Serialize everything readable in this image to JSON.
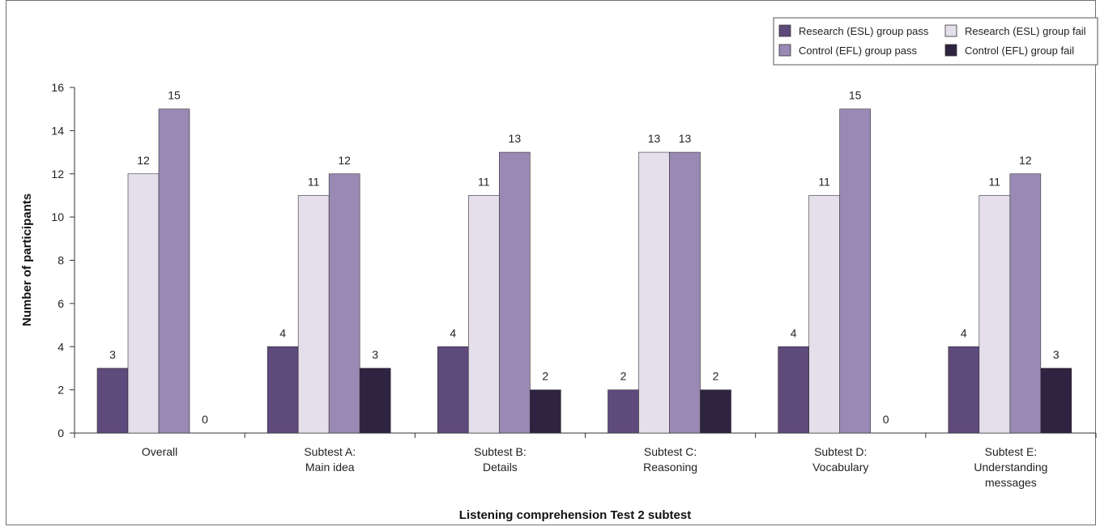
{
  "chart_data": {
    "type": "bar",
    "title": "",
    "xlabel": "Listening comprehension Test 2 subtest",
    "ylabel": "Number of participants",
    "ylim": [
      0,
      16
    ],
    "yticks": [
      0,
      2,
      4,
      6,
      8,
      10,
      12,
      14,
      16
    ],
    "grid": false,
    "legend_position": "top-right",
    "categories": [
      [
        "Overall"
      ],
      [
        "Subtest A:",
        "Main idea"
      ],
      [
        "Subtest B:",
        "Details"
      ],
      [
        "Subtest C:",
        "Reasoning"
      ],
      [
        "Subtest D:",
        "Vocabulary"
      ],
      [
        "Subtest E:",
        "Understanding",
        "messages"
      ]
    ],
    "series": [
      {
        "name": "Research (ESL) group pass",
        "color": "#5f4a7c",
        "values": [
          3,
          4,
          4,
          2,
          4,
          4
        ]
      },
      {
        "name": "Research (ESL) group fail",
        "color": "#e4dfeb",
        "values": [
          12,
          11,
          11,
          13,
          11,
          11
        ]
      },
      {
        "name": "Control (EFL) group pass",
        "color": "#9a89b4",
        "values": [
          15,
          12,
          13,
          13,
          15,
          12
        ]
      },
      {
        "name": "Control (EFL) group fail",
        "color": "#2e2340",
        "values": [
          0,
          3,
          2,
          2,
          0,
          3
        ]
      }
    ]
  }
}
